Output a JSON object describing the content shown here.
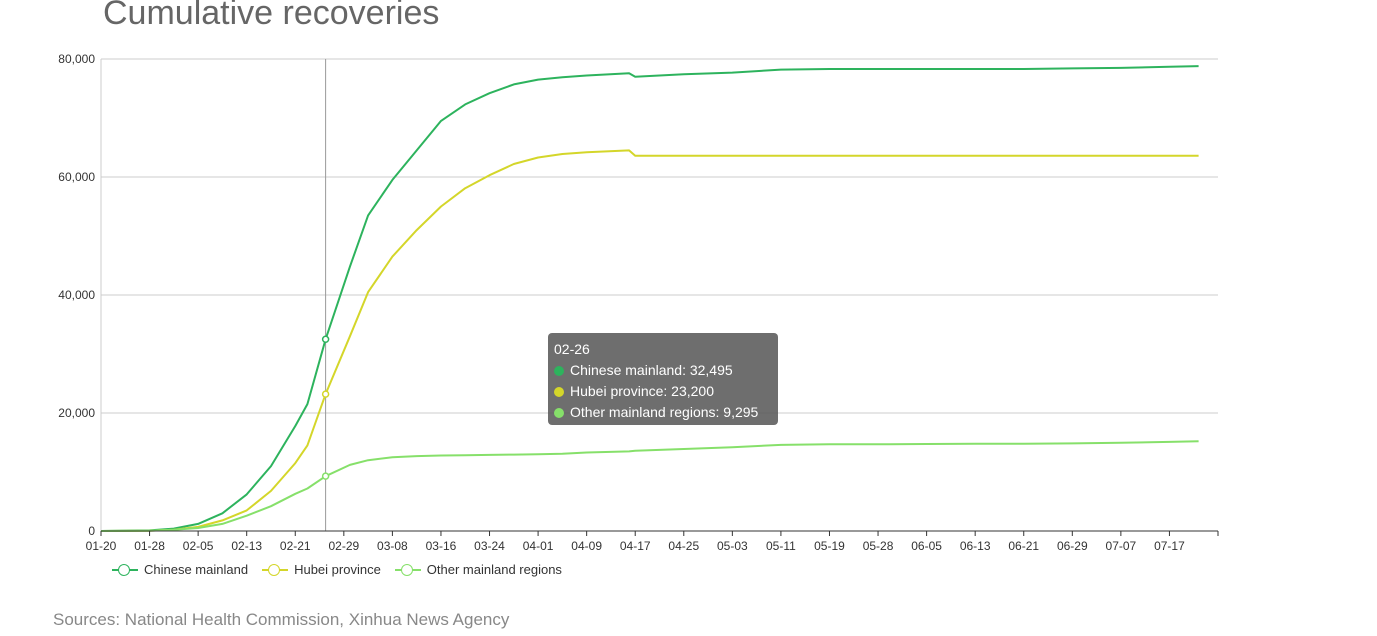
{
  "title": "Cumulative recoveries",
  "source": "Sources: National Health Commission, Xinhua News Agency",
  "colors": {
    "chinese_mainland": "#2db35d",
    "hubei": "#d4d62a",
    "other": "#86e06a"
  },
  "legend": [
    {
      "label": "Chinese mainland",
      "key": "chinese_mainland"
    },
    {
      "label": "Hubei province",
      "key": "hubei"
    },
    {
      "label": "Other mainland regions",
      "key": "other"
    }
  ],
  "tooltip": {
    "date": "02-26",
    "rows": [
      {
        "label": "Chinese mainland: 32,495",
        "key": "chinese_mainland"
      },
      {
        "label": "Hubei province: 23,200",
        "key": "hubei"
      },
      {
        "label": "Other mainland regions: 9,295",
        "key": "other"
      }
    ]
  },
  "chart_data": {
    "type": "line",
    "title": "Cumulative recoveries",
    "xlabel": "",
    "ylabel": "",
    "ylim": [
      0,
      80000
    ],
    "yticks": [
      0,
      20000,
      40000,
      60000,
      80000
    ],
    "ytick_labels": [
      "0",
      "20,000",
      "40,000",
      "60,000",
      "80,000"
    ],
    "xtick_labels": [
      "01-20",
      "01-28",
      "02-05",
      "02-13",
      "02-21",
      "02-29",
      "03-08",
      "03-16",
      "03-24",
      "04-01",
      "04-09",
      "04-17",
      "04-25",
      "05-03",
      "05-11",
      "05-19",
      "05-28",
      "06-05",
      "06-13",
      "06-21",
      "06-29",
      "07-07",
      "07-17"
    ],
    "grid": true,
    "legend_position": "bottom-left",
    "highlight_x": "02-26",
    "series": [
      {
        "name": "Chinese mainland",
        "key": "chinese_mainland",
        "x": [
          "01-20",
          "01-28",
          "02-01",
          "02-05",
          "02-09",
          "02-13",
          "02-17",
          "02-21",
          "02-23",
          "02-26",
          "03-01",
          "03-04",
          "03-08",
          "03-12",
          "03-16",
          "03-20",
          "03-24",
          "03-28",
          "04-01",
          "04-05",
          "04-09",
          "04-16",
          "04-17",
          "04-25",
          "05-03",
          "05-11",
          "05-19",
          "05-28",
          "06-05",
          "06-13",
          "06-21",
          "06-29",
          "07-07",
          "07-17",
          "07-23"
        ],
        "values": [
          0,
          100,
          400,
          1200,
          3000,
          6200,
          11000,
          17800,
          21500,
          32495,
          44800,
          53500,
          59500,
          64500,
          69500,
          72300,
          74200,
          75700,
          76500,
          76900,
          77200,
          77600,
          77000,
          77400,
          77700,
          78200,
          78300,
          78300,
          78300,
          78300,
          78300,
          78400,
          78500,
          78700,
          78800
        ]
      },
      {
        "name": "Hubei province",
        "key": "hubei",
        "x": [
          "01-20",
          "01-28",
          "02-01",
          "02-05",
          "02-09",
          "02-13",
          "02-17",
          "02-21",
          "02-23",
          "02-26",
          "03-01",
          "03-04",
          "03-08",
          "03-12",
          "03-16",
          "03-20",
          "03-24",
          "03-28",
          "04-01",
          "04-05",
          "04-09",
          "04-16",
          "04-17",
          "04-25",
          "05-03",
          "05-11",
          "05-19",
          "05-28",
          "06-05",
          "06-13",
          "06-21",
          "06-29",
          "07-07",
          "07-17",
          "07-23"
        ],
        "values": [
          0,
          50,
          200,
          700,
          1800,
          3500,
          6800,
          11500,
          14500,
          23200,
          33000,
          40500,
          46500,
          51000,
          55000,
          58100,
          60300,
          62200,
          63300,
          63900,
          64200,
          64500,
          63600,
          63600,
          63600,
          63600,
          63600,
          63600,
          63600,
          63600,
          63600,
          63600,
          63600,
          63600,
          63600
        ]
      },
      {
        "name": "Other mainland regions",
        "key": "other",
        "x": [
          "01-20",
          "01-28",
          "02-01",
          "02-05",
          "02-09",
          "02-13",
          "02-17",
          "02-21",
          "02-23",
          "02-26",
          "03-01",
          "03-04",
          "03-08",
          "03-12",
          "03-16",
          "03-20",
          "03-24",
          "03-28",
          "04-01",
          "04-05",
          "04-09",
          "04-16",
          "04-17",
          "04-25",
          "05-03",
          "05-11",
          "05-19",
          "05-28",
          "06-05",
          "06-13",
          "06-21",
          "06-29",
          "07-07",
          "07-17",
          "07-23"
        ],
        "values": [
          0,
          50,
          200,
          500,
          1200,
          2600,
          4200,
          6300,
          7200,
          9295,
          11200,
          12000,
          12500,
          12700,
          12800,
          12850,
          12900,
          12950,
          13000,
          13100,
          13300,
          13500,
          13600,
          13900,
          14200,
          14600,
          14700,
          14700,
          14750,
          14800,
          14800,
          14850,
          14950,
          15100,
          15200
        ]
      }
    ]
  }
}
